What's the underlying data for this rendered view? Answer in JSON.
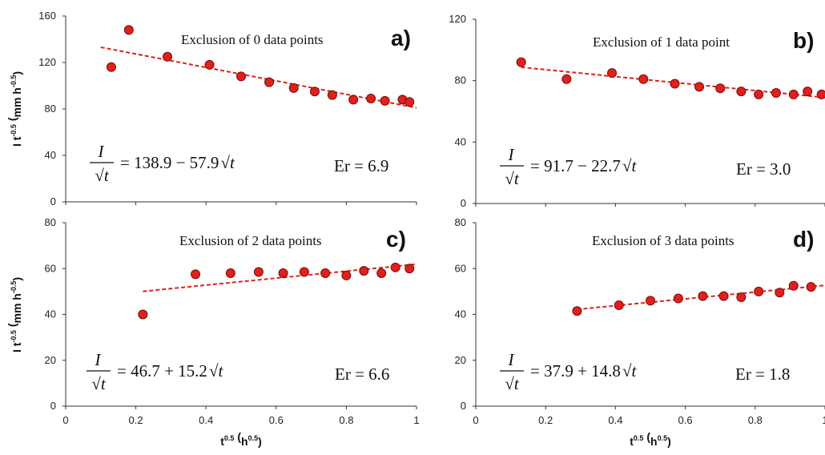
{
  "figure": {
    "x_axis_label": {
      "base": "t",
      "exp": "0.5",
      "unit_base": "h",
      "unit_exp": "0.5"
    },
    "y_axis_label": {
      "base": "I t",
      "exp": "-0.5",
      "unit_base": "mm h",
      "unit_exp": "-0.5"
    }
  },
  "chart_data": [
    {
      "type": "scatter",
      "panel": "a)",
      "annotation": "Exclusion of 0 data points",
      "equation": {
        "numerator": "I",
        "denominator": "√t",
        "rhs_const": "= 138.9 − 57.9",
        "rhs_var": "√t"
      },
      "error_label": "Er = 6.9",
      "xlim": [
        0,
        1
      ],
      "ylim": [
        0,
        160
      ],
      "x_ticks": [
        "0",
        "0.2",
        "0.4",
        "0.6",
        "0.8",
        "1"
      ],
      "y_ticks": [
        "0",
        "40",
        "80",
        "120",
        "160"
      ],
      "y_tick_values": [
        0,
        40,
        80,
        120,
        160
      ],
      "series": [
        {
          "x": [
            0.13,
            0.18,
            0.29,
            0.41,
            0.5,
            0.58,
            0.65,
            0.71,
            0.76,
            0.82,
            0.87,
            0.91,
            0.96,
            0.98
          ],
          "y": [
            116,
            148,
            125,
            118,
            108,
            103,
            98,
            95,
            92,
            88,
            89,
            87,
            88,
            86
          ]
        }
      ],
      "trend": {
        "intercept": 138.9,
        "slope": -57.9,
        "x_range": [
          0.1,
          1.0
        ]
      },
      "show_x_ticks": false
    },
    {
      "type": "scatter",
      "panel": "b)",
      "annotation": "Exclusion of 1 data point",
      "equation": {
        "numerator": "I",
        "denominator": "√t",
        "rhs_const": "= 91.7 − 22.7",
        "rhs_var": "√t"
      },
      "error_label": "Er = 3.0",
      "xlim": [
        0,
        1
      ],
      "ylim": [
        0,
        120
      ],
      "x_ticks": [
        "0",
        "0.2",
        "0.4",
        "0.6",
        "0.8",
        "1"
      ],
      "y_ticks": [
        "0",
        "40",
        "80",
        "120"
      ],
      "y_tick_values": [
        0,
        40,
        80,
        120
      ],
      "series": [
        {
          "x": [
            0.13,
            0.26,
            0.39,
            0.48,
            0.57,
            0.64,
            0.7,
            0.76,
            0.81,
            0.86,
            0.91,
            0.95,
            0.99
          ],
          "y": [
            92,
            81,
            85,
            81,
            78,
            76,
            75,
            73,
            71,
            72,
            71,
            73,
            71
          ]
        }
      ],
      "trend": {
        "intercept": 91.7,
        "slope": -22.7,
        "x_range": [
          0.13,
          1.0
        ]
      },
      "show_x_ticks": false
    },
    {
      "type": "scatter",
      "panel": "c)",
      "annotation": "Exclusion of 2 data points",
      "equation": {
        "numerator": "I",
        "denominator": "√t",
        "rhs_const": "= 46.7 + 15.2",
        "rhs_var": "√t"
      },
      "error_label": "Er = 6.6",
      "xlim": [
        0,
        1
      ],
      "ylim": [
        0,
        80
      ],
      "x_ticks": [
        "0",
        "0.2",
        "0.4",
        "0.6",
        "0.8",
        "1"
      ],
      "y_ticks": [
        "0",
        "20",
        "40",
        "60",
        "80"
      ],
      "y_tick_values": [
        0,
        20,
        40,
        60,
        80
      ],
      "series": [
        {
          "x": [
            0.22,
            0.37,
            0.47,
            0.55,
            0.62,
            0.68,
            0.74,
            0.8,
            0.85,
            0.9,
            0.94,
            0.98
          ],
          "y": [
            40,
            57.5,
            58,
            58.5,
            58,
            58.5,
            58,
            57,
            59,
            58,
            60.5,
            60
          ]
        }
      ],
      "trend": {
        "intercept": 46.7,
        "slope": 15.2,
        "x_range": [
          0.22,
          1.0
        ]
      },
      "show_x_ticks": true
    },
    {
      "type": "scatter",
      "panel": "d)",
      "annotation": "Exclusion of 3 data points",
      "equation": {
        "numerator": "I",
        "denominator": "√t",
        "rhs_const": "= 37.9 + 14.8",
        "rhs_var": "√t"
      },
      "error_label": "Er = 1.8",
      "xlim": [
        0,
        1
      ],
      "ylim": [
        0,
        80
      ],
      "x_ticks": [
        "0",
        "0.2",
        "0.4",
        "0.6",
        "0.8",
        "1"
      ],
      "y_ticks": [
        "0",
        "20",
        "40",
        "60",
        "80"
      ],
      "y_tick_values": [
        0,
        20,
        40,
        60,
        80
      ],
      "series": [
        {
          "x": [
            0.29,
            0.41,
            0.5,
            0.58,
            0.65,
            0.71,
            0.76,
            0.81,
            0.87,
            0.91,
            0.96
          ],
          "y": [
            41.5,
            44,
            46,
            47,
            48,
            48,
            47.5,
            50,
            49.5,
            52.5,
            52
          ]
        }
      ],
      "trend": {
        "intercept": 37.9,
        "slope": 14.8,
        "x_range": [
          0.29,
          1.0
        ]
      },
      "show_x_ticks": true
    }
  ],
  "colors": {
    "marker_fill": "#e0201c",
    "marker_stroke": "#7a0a08",
    "trend_line": "#e0201c",
    "axis": "#333333"
  }
}
